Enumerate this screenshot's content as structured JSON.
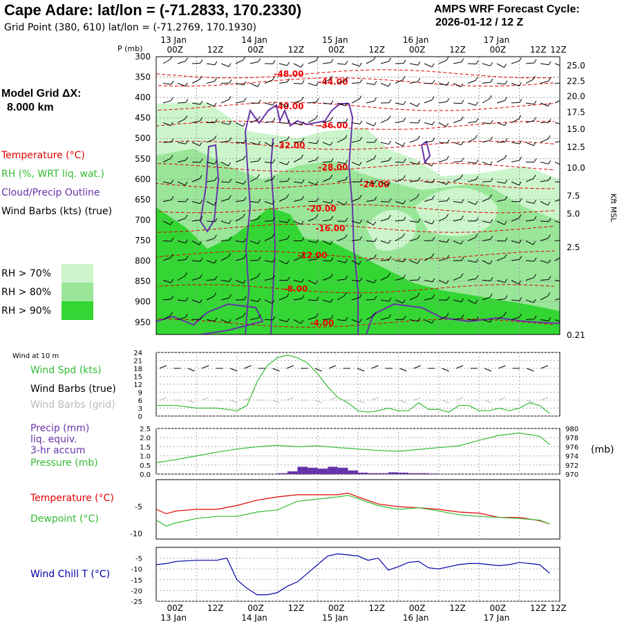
{
  "header": {
    "title": "Cape Adare:  lat/lon = (-71.2833, 170.2330)",
    "subtitle": "Grid Point (380, 610) lat/lon = (-71.2769, 170.1930)",
    "cycle_line1": "AMPS WRF Forecast Cycle:",
    "cycle_line2": "2026-01-12 / 12  Z",
    "grid_line1": "Model Grid ΔX:",
    "grid_line2": "8.000 km"
  },
  "legend": {
    "temperature": "Temperature (°C)",
    "rh": "RH (%, WRT liq. wat.)",
    "cloud": "Cloud/Precip Outline",
    "wind": "Wind Barbs (kts) (true)",
    "rh70": "RH > 70%",
    "rh80": "RH > 80%",
    "rh90": "RH > 90%"
  },
  "colors": {
    "rh70": "#ccf5cc",
    "rh80": "#99e699",
    "rh90": "#33d633",
    "temperature": "#e00000",
    "cloud": "#6633aa",
    "green_line": "#33bb33",
    "wind_chill": "#0000aa",
    "grid_barb": "#bbbbbb"
  },
  "time_axis": {
    "ticks": [
      "00Z",
      "12Z",
      "00Z",
      "12Z",
      "00Z",
      "12Z",
      "00Z",
      "12Z",
      "00Z",
      "12Z"
    ],
    "dates": [
      "13 Jan",
      "14 Jan",
      "15 Jan",
      "16 Jan",
      "17 Jan"
    ],
    "top_ticks": [
      "00Z",
      "12Z",
      "00Z",
      "12Z",
      "00Z",
      "12Z",
      "00Z",
      "12Z",
      "00Z",
      "12Z"
    ]
  },
  "chart_data": [
    {
      "type": "heatmap",
      "name": "cross-section",
      "ylabel": "P (mb)",
      "right_label": "Kft MSL",
      "pressure_levels": [
        300,
        350,
        400,
        450,
        500,
        550,
        600,
        650,
        700,
        750,
        800,
        850,
        900,
        950
      ],
      "height_ticks": [
        "25.0",
        "22.5",
        "20.0",
        "17.5",
        "15.0",
        "12.5",
        "10.0",
        "7.5",
        "5.0",
        "2.5",
        "0.21"
      ],
      "height_pressures": [
        322,
        360,
        397,
        436,
        478,
        522,
        572,
        641,
        685,
        767,
        830,
        934,
        985
      ],
      "temperature_contours": [
        {
          "label": "-48.00",
          "p": 342
        },
        {
          "label": "-44.00",
          "p": 362
        },
        {
          "label": "-40.00",
          "p": 422
        },
        {
          "label": "-36.00",
          "p": 468
        },
        {
          "label": "-32.00",
          "p": 517
        },
        {
          "label": "-28.00",
          "p": 571
        },
        {
          "label": "-24.00",
          "p": 613
        },
        {
          "label": "-20.00",
          "p": 672
        },
        {
          "label": "-16.00",
          "p": 720
        },
        {
          "label": "-12.00",
          "p": 786
        },
        {
          "label": "-8.00",
          "p": 868
        },
        {
          "label": "-4.00",
          "p": 952
        }
      ]
    },
    {
      "type": "line",
      "name": "wind",
      "title": "Wind at 10 m",
      "series_labels": [
        "Wind Spd (kts)",
        "Wind Barbs (true)",
        "Wind Barbs (grid)"
      ],
      "yticks": [
        0,
        3,
        6,
        9,
        12,
        15,
        18,
        21,
        24
      ],
      "ylim": [
        0,
        24
      ],
      "x": [
        0,
        6,
        12,
        18,
        24,
        27,
        30,
        33,
        36,
        39,
        42,
        45,
        48,
        51,
        54,
        57,
        60,
        63,
        66,
        69,
        72,
        75,
        78,
        81,
        84,
        87,
        90,
        93,
        96,
        99,
        102,
        105,
        108,
        111,
        114,
        117
      ],
      "values": [
        4,
        4,
        3,
        3,
        2,
        4,
        13,
        19,
        22,
        23,
        22,
        20,
        16,
        11,
        7,
        5,
        2,
        1.5,
        2,
        3,
        2,
        2,
        5,
        2.5,
        2.5,
        1.5,
        4,
        4,
        2,
        2,
        3,
        2,
        3,
        5,
        4,
        1
      ]
    },
    {
      "type": "line",
      "name": "precip-pressure",
      "series_labels": [
        "Precip (mm)",
        "liq. equiv.",
        "3-hr accum",
        "Pressure (mb)"
      ],
      "yticks_left": [
        "2.5",
        "2.0",
        "1.5",
        "1.0",
        "0.5",
        "0.0"
      ],
      "yticks_right": [
        "980",
        "978",
        "976",
        "974",
        "972",
        "970"
      ],
      "right_label": "(mb)",
      "ylim": [
        0,
        2.5
      ],
      "ylim_right": [
        970,
        980
      ],
      "pressure_x": [
        0,
        6,
        12,
        18,
        24,
        30,
        36,
        42,
        48,
        54,
        60,
        66,
        72,
        78,
        84,
        90,
        96,
        102,
        108,
        114,
        117
      ],
      "pressure": [
        972.5,
        973.2,
        974.0,
        974.8,
        975.5,
        976.0,
        976.3,
        976.0,
        976.2,
        975.8,
        975.5,
        975.2,
        975.0,
        975.4,
        975.8,
        976.2,
        977.4,
        978.5,
        979.0,
        978.3,
        976.5
      ],
      "precip_x": [
        36,
        39,
        42,
        45,
        48,
        51,
        54,
        57,
        60,
        63,
        66,
        69,
        72,
        75,
        78,
        81
      ],
      "precip": [
        0.05,
        0.15,
        0.4,
        0.35,
        0.3,
        0.4,
        0.35,
        0.2,
        0.08,
        0.05,
        0.05,
        0.1,
        0.08,
        0.05,
        0.05,
        0.03
      ]
    },
    {
      "type": "line",
      "name": "temperature-dewpoint",
      "series_labels": [
        "Temperature (°C)",
        "Dewpoint (°C)"
      ],
      "yticks": [
        "-5",
        "-10"
      ],
      "ylim": [
        -11,
        0
      ],
      "x": [
        0,
        3,
        6,
        12,
        18,
        24,
        30,
        36,
        42,
        48,
        54,
        57,
        60,
        66,
        72,
        78,
        84,
        90,
        96,
        102,
        108,
        114,
        117
      ],
      "temperature": [
        -5.5,
        -6.3,
        -5.8,
        -5.5,
        -5.5,
        -4.8,
        -3.8,
        -3.2,
        -2.8,
        -2.8,
        -2.8,
        -2.5,
        -3.2,
        -4.5,
        -5.0,
        -5.2,
        -5.5,
        -6.0,
        -6.2,
        -7.0,
        -7.0,
        -7.6,
        -8.2
      ],
      "dewpoint": [
        -7.5,
        -8.6,
        -8.0,
        -7.2,
        -6.8,
        -6.8,
        -6.0,
        -5.6,
        -4.0,
        -3.6,
        -3.2,
        -2.9,
        -3.5,
        -4.8,
        -5.5,
        -5.2,
        -5.8,
        -6.5,
        -6.8,
        -7.0,
        -7.2,
        -7.5,
        -8.2
      ]
    },
    {
      "type": "line",
      "name": "wind-chill",
      "series_labels": [
        "Wind Chill T (°C)"
      ],
      "yticks": [
        -5,
        -10,
        -15,
        -20,
        -25
      ],
      "ylim": [
        -25,
        0
      ],
      "x": [
        0,
        3,
        6,
        12,
        18,
        21,
        24,
        27,
        30,
        33,
        36,
        39,
        42,
        45,
        48,
        51,
        54,
        57,
        60,
        63,
        66,
        69,
        72,
        75,
        78,
        81,
        84,
        87,
        90,
        93,
        96,
        99,
        102,
        105,
        108,
        111,
        114,
        117
      ],
      "values": [
        -8,
        -7.5,
        -6.5,
        -6,
        -6,
        -5,
        -15,
        -19,
        -22,
        -22,
        -21,
        -18,
        -16,
        -12,
        -8,
        -4,
        -3,
        -3.5,
        -4,
        -6,
        -5,
        -10.5,
        -9,
        -7,
        -6.5,
        -9.5,
        -10,
        -9,
        -8,
        -7.5,
        -7.5,
        -8,
        -8.5,
        -8,
        -7,
        -7.5,
        -8,
        -12
      ]
    }
  ]
}
